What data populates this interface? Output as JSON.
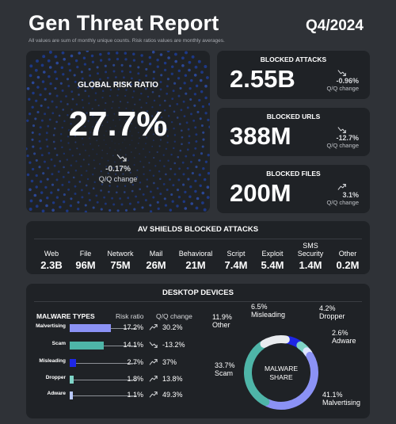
{
  "header": {
    "title": "Gen Threat Report",
    "period": "Q4/2024",
    "subtitle": "All values are sum of monthly unique counts. Risk ratios values are monthly averages."
  },
  "global_risk": {
    "label": "GLOBAL RISK RATIO",
    "value": "27.7%",
    "change": "-0.17%",
    "change_label": "Q/Q change"
  },
  "blocked_attacks": {
    "label": "BLOCKED ATTACKS",
    "value": "2.55B",
    "change": "-0.96%",
    "change_label": "Q/Q change"
  },
  "blocked_urls": {
    "label": "BLOCKED URLS",
    "value": "388M",
    "change": "-12.7%",
    "change_label": "Q/Q change"
  },
  "blocked_files": {
    "label": "BLOCKED FILES",
    "value": "200M",
    "change": "3.1%",
    "change_label": "Q/Q change"
  },
  "av_shields": {
    "title": "AV SHIELDS BLOCKED ATTACKS",
    "items": [
      {
        "name": "Web",
        "value": "2.3B"
      },
      {
        "name": "File",
        "value": "96M"
      },
      {
        "name": "Network",
        "value": "75M"
      },
      {
        "name": "Mail",
        "value": "26M"
      },
      {
        "name": "Behavioral",
        "value": "21M"
      },
      {
        "name": "Script",
        "value": "7.4M"
      },
      {
        "name": "Exploit",
        "value": "5.4M"
      },
      {
        "name": "SMS Security",
        "value": "1.4M"
      },
      {
        "name": "Other",
        "value": "0.2M"
      }
    ]
  },
  "desktop": {
    "title": "DESKTOP DEVICES",
    "malware_header": "MALWARE TYPES",
    "risk_header": "Risk ratio",
    "change_header": "Q/Q change",
    "malware_types": [
      {
        "name": "Malvertising",
        "risk": "17.2%",
        "risk_value": 17.2,
        "change": "30.2%",
        "color": "#8b92f5"
      },
      {
        "name": "Scam",
        "risk": "14.1%",
        "risk_value": 14.1,
        "change": "-13.2%",
        "color": "#4eb5a8"
      },
      {
        "name": "Misleading",
        "risk": "2.7%",
        "risk_value": 2.7,
        "change": "37%",
        "color": "#1e27e6"
      },
      {
        "name": "Dropper",
        "risk": "1.8%",
        "risk_value": 1.8,
        "change": "13.8%",
        "color": "#7fd4c7"
      },
      {
        "name": "Adware",
        "risk": "1.1%",
        "risk_value": 1.1,
        "change": "49.3%",
        "color": "#b9c9ff"
      }
    ],
    "share_label": "MALWARE SHARE",
    "share_label_line1": "MALWARE",
    "share_label_line2": "SHARE",
    "share": [
      {
        "name": "Malvertising",
        "pct": "41.1%",
        "value": 41.1,
        "color": "#8b92f5"
      },
      {
        "name": "Scam",
        "pct": "33.7%",
        "value": 33.7,
        "color": "#4eb5a8"
      },
      {
        "name": "Other",
        "pct": "11.9%",
        "value": 11.9,
        "color": "#e9ecef"
      },
      {
        "name": "Misleading",
        "pct": "6.5%",
        "value": 6.5,
        "color": "#1e27e6"
      },
      {
        "name": "Dropper",
        "pct": "4.2%",
        "value": 4.2,
        "color": "#7fd4c7"
      },
      {
        "name": "Adware",
        "pct": "2.6%",
        "value": 2.6,
        "color": "#dfe6ff"
      }
    ]
  }
}
